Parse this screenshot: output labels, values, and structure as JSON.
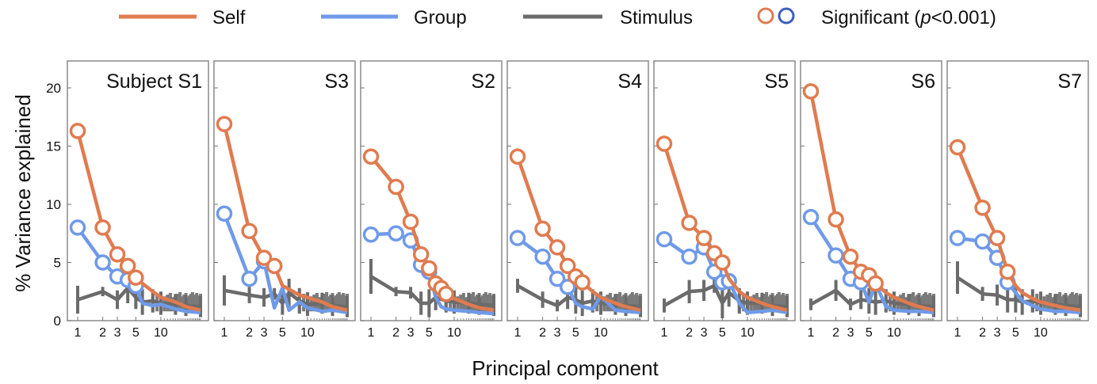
{
  "legend": {
    "self": "Self",
    "group": "Group",
    "stimulus": "Stimulus",
    "significant_prefix": "Significant (",
    "significant_p": "p",
    "significant_suffix": "<0.001)"
  },
  "colors": {
    "self": "#e07b4f",
    "group": "#6f9ae8",
    "stimulus": "#6b6b6b",
    "significant_self_marker": "#e07b4f",
    "significant_group_marker": "#3c5ec0",
    "noise_bars": "#7a7a7a"
  },
  "axes": {
    "ylabel": "% Variance explained",
    "xlabel": "Principal component",
    "y_ticks": [
      "0",
      "5",
      "10",
      "15",
      "20"
    ],
    "x_ticks": [
      "1",
      "2",
      "3",
      "5",
      "10"
    ],
    "ylim": [
      0,
      22
    ],
    "x_scale": "log",
    "xlim_components": [
      1,
      30
    ]
  },
  "chart_data": [
    {
      "type": "line",
      "title": "Subject S1",
      "series": [
        {
          "name": "Self",
          "x": [
            1,
            2,
            3,
            4,
            5,
            6,
            8,
            10,
            15,
            20,
            30
          ],
          "values": [
            16.3,
            8.0,
            5.7,
            4.7,
            3.7,
            3.2,
            2.5,
            2.0,
            1.6,
            1.2,
            0.9
          ],
          "significant_count": 5
        },
        {
          "name": "Group",
          "x": [
            1,
            2,
            3,
            4,
            5,
            6,
            8,
            10,
            15,
            20,
            30
          ],
          "values": [
            8.0,
            5.0,
            3.8,
            3.5,
            3.0,
            1.5,
            1.3,
            1.4,
            1.0,
            0.8,
            0.7
          ],
          "significant_count": 5
        },
        {
          "name": "Stimulus",
          "x": [
            1,
            2,
            3,
            4,
            5,
            6,
            8,
            10,
            15,
            20,
            30
          ],
          "values": [
            1.8,
            2.5,
            1.8,
            2.8,
            2.0,
            1.6,
            1.7,
            1.5,
            1.4,
            1.3,
            1.2
          ],
          "errors": [
            1.2,
            0.4,
            0.8,
            1.3,
            1.0,
            1.1,
            1.0,
            1.0,
            0.9,
            0.9,
            0.9
          ]
        }
      ]
    },
    {
      "type": "line",
      "title": "S3",
      "series": [
        {
          "name": "Self",
          "x": [
            1,
            2,
            3,
            4,
            5,
            6,
            8,
            10,
            15,
            20,
            30
          ],
          "values": [
            16.9,
            7.7,
            5.4,
            4.7,
            3.0,
            2.7,
            2.2,
            2.0,
            1.6,
            1.2,
            0.9
          ],
          "significant_count": 4
        },
        {
          "name": "Group",
          "x": [
            1,
            2,
            3,
            4,
            5,
            6,
            8,
            10,
            15,
            20,
            30
          ],
          "values": [
            9.2,
            3.6,
            5.1,
            1.1,
            2.8,
            0.9,
            1.6,
            1.1,
            0.8,
            0.9,
            0.7
          ],
          "significant_count": 3
        },
        {
          "name": "Stimulus",
          "x": [
            1,
            2,
            3,
            4,
            5,
            6,
            8,
            10,
            15,
            20,
            30
          ],
          "values": [
            2.6,
            2.2,
            2.0,
            2.3,
            1.5,
            2.4,
            1.7,
            1.4,
            1.5,
            1.3,
            1.2
          ],
          "errors": [
            1.3,
            0.7,
            0.8,
            0.5,
            1.0,
            1.2,
            1.1,
            1.0,
            0.9,
            0.9,
            0.9
          ]
        }
      ]
    },
    {
      "type": "line",
      "title": "S2",
      "series": [
        {
          "name": "Self",
          "x": [
            1,
            2,
            3,
            4,
            5,
            6,
            7,
            8,
            10,
            15,
            20,
            30
          ],
          "values": [
            14.1,
            11.5,
            8.5,
            5.7,
            4.5,
            3.2,
            2.8,
            2.3,
            1.9,
            1.4,
            1.1,
            0.9
          ],
          "significant_count": 8
        },
        {
          "name": "Group",
          "x": [
            1,
            2,
            3,
            4,
            5,
            6,
            7,
            8,
            10,
            15,
            20,
            30
          ],
          "values": [
            7.4,
            7.5,
            6.9,
            4.8,
            4.2,
            2.0,
            1.2,
            1.0,
            0.9,
            0.8,
            0.7,
            0.6
          ],
          "significant_count": 5
        },
        {
          "name": "Stimulus",
          "x": [
            1,
            2,
            3,
            4,
            5,
            6,
            8,
            10,
            15,
            20,
            30
          ],
          "values": [
            3.8,
            2.5,
            2.4,
            1.5,
            1.5,
            2.0,
            1.7,
            1.6,
            1.5,
            1.4,
            1.3
          ],
          "errors": [
            1.5,
            0.4,
            0.5,
            1.0,
            1.2,
            1.1,
            1.0,
            1.0,
            0.9,
            0.9,
            0.9
          ]
        }
      ]
    },
    {
      "type": "line",
      "title": "S4",
      "series": [
        {
          "name": "Self",
          "x": [
            1,
            2,
            3,
            4,
            5,
            6,
            8,
            10,
            15,
            20,
            30
          ],
          "values": [
            14.1,
            7.9,
            6.3,
            4.7,
            3.8,
            3.3,
            2.5,
            2.0,
            1.5,
            1.2,
            0.9
          ],
          "significant_count": 6
        },
        {
          "name": "Group",
          "x": [
            1,
            2,
            3,
            4,
            5,
            6,
            8,
            10,
            15,
            20,
            30
          ],
          "values": [
            7.1,
            5.5,
            3.6,
            2.9,
            1.5,
            1.2,
            1.0,
            2.1,
            0.9,
            0.8,
            0.7
          ],
          "significant_count": 4
        },
        {
          "name": "Stimulus",
          "x": [
            1,
            2,
            3,
            4,
            5,
            6,
            8,
            10,
            15,
            20,
            30
          ],
          "values": [
            3.0,
            1.8,
            1.3,
            2.0,
            1.8,
            1.5,
            1.7,
            1.5,
            1.4,
            1.3,
            1.2
          ],
          "errors": [
            0.6,
            0.7,
            0.5,
            1.0,
            1.2,
            1.1,
            1.0,
            1.0,
            0.9,
            0.9,
            0.9
          ]
        }
      ]
    },
    {
      "type": "line",
      "title": "S5",
      "series": [
        {
          "name": "Self",
          "x": [
            1,
            2,
            3,
            4,
            5,
            6,
            8,
            10,
            15,
            20,
            30
          ],
          "values": [
            15.2,
            8.4,
            7.1,
            5.8,
            5.0,
            3.6,
            2.5,
            2.0,
            1.5,
            1.2,
            0.9
          ],
          "significant_count": 5
        },
        {
          "name": "Group",
          "x": [
            1,
            2,
            3,
            4,
            5,
            6,
            8,
            10,
            15,
            20,
            30
          ],
          "values": [
            7.0,
            5.5,
            6.3,
            4.2,
            3.3,
            3.4,
            1.5,
            0.7,
            0.8,
            0.9,
            0.7
          ],
          "significant_count": 6
        },
        {
          "name": "Stimulus",
          "x": [
            1,
            2,
            3,
            4,
            5,
            6,
            8,
            10,
            15,
            20,
            30
          ],
          "values": [
            1.3,
            2.5,
            2.6,
            3.0,
            1.5,
            2.4,
            1.7,
            1.5,
            1.5,
            1.3,
            1.2
          ],
          "errors": [
            0.6,
            1.0,
            0.9,
            0.6,
            1.3,
            1.2,
            1.1,
            1.0,
            0.9,
            0.9,
            0.9
          ]
        }
      ]
    },
    {
      "type": "line",
      "title": "S6",
      "series": [
        {
          "name": "Self",
          "x": [
            1,
            2,
            3,
            4,
            5,
            6,
            8,
            10,
            15,
            20,
            30
          ],
          "values": [
            19.7,
            8.7,
            5.5,
            4.2,
            3.9,
            3.2,
            2.4,
            2.0,
            1.5,
            1.2,
            0.9
          ],
          "significant_count": 6
        },
        {
          "name": "Group",
          "x": [
            1,
            2,
            3,
            4,
            5,
            6,
            8,
            10,
            15,
            20,
            30
          ],
          "values": [
            8.9,
            5.6,
            3.6,
            3.3,
            1.6,
            3.2,
            1.2,
            0.9,
            0.8,
            0.8,
            0.7
          ],
          "significant_count": 4
        },
        {
          "name": "Stimulus",
          "x": [
            1,
            2,
            3,
            4,
            5,
            6,
            8,
            10,
            15,
            20,
            30
          ],
          "values": [
            1.4,
            2.6,
            1.4,
            1.8,
            1.7,
            1.6,
            1.7,
            1.5,
            1.4,
            1.3,
            1.2
          ],
          "errors": [
            0.5,
            0.9,
            0.5,
            0.8,
            1.1,
            1.1,
            1.0,
            1.0,
            0.9,
            0.9,
            0.9
          ]
        }
      ]
    },
    {
      "type": "line",
      "title": "S7",
      "series": [
        {
          "name": "Self",
          "x": [
            1,
            2,
            3,
            4,
            5,
            6,
            8,
            10,
            15,
            20,
            30
          ],
          "values": [
            14.9,
            9.7,
            7.1,
            4.2,
            3.0,
            2.4,
            1.9,
            1.6,
            1.3,
            1.1,
            0.9
          ],
          "significant_count": 4
        },
        {
          "name": "Group",
          "x": [
            1,
            2,
            3,
            4,
            5,
            6,
            8,
            10,
            15,
            20,
            30
          ],
          "values": [
            7.1,
            6.8,
            5.4,
            3.3,
            2.4,
            1.7,
            1.3,
            1.0,
            0.8,
            0.8,
            0.7
          ],
          "significant_count": 4
        },
        {
          "name": "Stimulus",
          "x": [
            1,
            2,
            3,
            4,
            5,
            6,
            8,
            10,
            15,
            20,
            30
          ],
          "values": [
            3.7,
            2.3,
            2.2,
            1.8,
            1.8,
            1.6,
            1.7,
            1.5,
            1.4,
            1.3,
            1.2
          ],
          "errors": [
            1.4,
            0.6,
            0.9,
            1.1,
            1.1,
            1.1,
            1.0,
            1.0,
            0.9,
            0.9,
            0.9
          ]
        }
      ]
    }
  ]
}
